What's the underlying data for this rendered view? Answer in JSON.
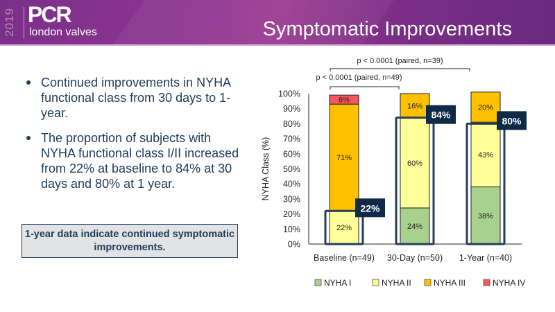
{
  "header": {
    "logo_year": "2019",
    "logo_brand": "PCR",
    "logo_subtitle": "london valves",
    "title": "Symptomatic Improvements"
  },
  "bullets": [
    "Continued improvements in NYHA functional class from 30 days to 1-year.",
    "The proportion of subjects with NYHA functional class I/II increased from 22% at baseline to 84% at 30 days and 80% at 1 year."
  ],
  "callout": "1-year data indicate continued symptomatic improvements.",
  "colors": {
    "nyha_i": "#a9d18e",
    "nyha_ii": "#ffff99",
    "nyha_iii": "#ffc000",
    "nyha_iv": "#f4585a",
    "highlight_box": "#0e2a47",
    "highlight_outline": "#253e5c"
  },
  "chart_data": {
    "type": "bar",
    "stacked": true,
    "ylabel": "NYHA Class (%)",
    "xlabel": "",
    "ylim": [
      0,
      100
    ],
    "yticks": [
      "0%",
      "10%",
      "20%",
      "30%",
      "40%",
      "50%",
      "60%",
      "70%",
      "80%",
      "90%",
      "100%"
    ],
    "categories": [
      "Baseline (n=49)",
      "30-Day (n=50)",
      "1-Year (n=40)"
    ],
    "series": [
      {
        "name": "NYHA I",
        "key": "nyha_i",
        "values": [
          0,
          24,
          38
        ],
        "labels": [
          "",
          "24%",
          "38%"
        ]
      },
      {
        "name": "NYHA II",
        "key": "nyha_ii",
        "values": [
          22,
          60,
          43
        ],
        "labels": [
          "22%",
          "60%",
          "43%"
        ]
      },
      {
        "name": "NYHA III",
        "key": "nyha_iii",
        "values": [
          71,
          16,
          20
        ],
        "labels": [
          "71%",
          "16%",
          "20%"
        ]
      },
      {
        "name": "NYHA IV",
        "key": "nyha_iv",
        "values": [
          6,
          0,
          0
        ],
        "labels": [
          "6%",
          "",
          ""
        ]
      }
    ],
    "highlights": [
      {
        "category": 0,
        "value": 22,
        "label": "22%"
      },
      {
        "category": 1,
        "value": 84,
        "label": "84%"
      },
      {
        "category": 2,
        "value": 80,
        "label": "80%"
      }
    ],
    "annotations": [
      {
        "from": 0,
        "to": 1,
        "text": "p < 0.0001 (paired, n=49)"
      },
      {
        "from": 0,
        "to": 2,
        "text": "p < 0.0001 (paired, n=39)"
      }
    ],
    "legend": {
      "position": "bottom",
      "entries": [
        "NYHA I",
        "NYHA II",
        "NYHA III",
        "NYHA IV"
      ]
    },
    "grid": false
  }
}
